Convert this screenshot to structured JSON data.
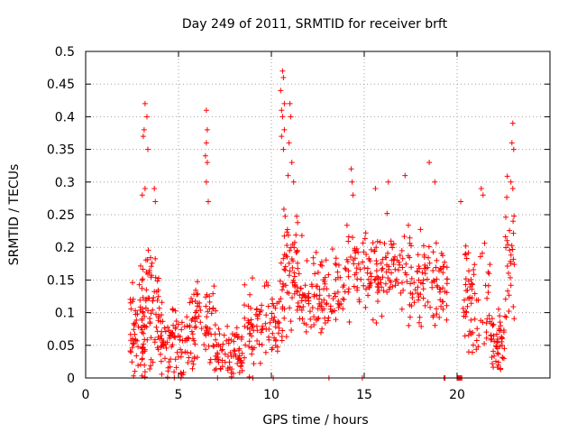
{
  "chart_data": {
    "type": "scatter",
    "title": "Day 249 of 2011, SRMTID for receiver brft",
    "xlabel": "GPS time / hours",
    "ylabel": "SRMTID / TECUs",
    "xlim": [
      0,
      25
    ],
    "ylim": [
      0,
      0.5
    ],
    "grid": true,
    "marker": "+",
    "color": "#ff0000",
    "x_ticks": [
      0,
      5,
      10,
      15,
      20
    ],
    "x_tick_labels": [
      "0",
      "5",
      "10",
      "15",
      "20"
    ],
    "y_ticks": [
      0,
      0.05,
      0.1,
      0.15,
      0.2,
      0.25,
      0.3,
      0.35,
      0.4,
      0.45,
      0.5
    ],
    "y_tick_labels": [
      "0",
      "0.05",
      "0.1",
      "0.15",
      "0.2",
      "0.25",
      "0.3",
      "0.35",
      "0.4",
      "0.45",
      "0.5"
    ],
    "series": [
      {
        "name": "SRMTID",
        "profile": [
          {
            "x_range": [
              2.4,
              3.2
            ],
            "mean": 0.07,
            "spread": 0.06,
            "density": 60
          },
          {
            "x_range": [
              3.0,
              4.0
            ],
            "mean": 0.11,
            "spread": 0.08,
            "density": 70
          },
          {
            "x_range": [
              4.0,
              5.5
            ],
            "mean": 0.05,
            "spread": 0.05,
            "density": 80
          },
          {
            "x_range": [
              5.5,
              7.0
            ],
            "mean": 0.08,
            "spread": 0.06,
            "density": 80
          },
          {
            "x_range": [
              7.0,
              8.5
            ],
            "mean": 0.04,
            "spread": 0.03,
            "density": 70
          },
          {
            "x_range": [
              8.5,
              10.5
            ],
            "mean": 0.08,
            "spread": 0.05,
            "density": 90
          },
          {
            "x_range": [
              10.5,
              11.5
            ],
            "mean": 0.17,
            "spread": 0.08,
            "density": 70
          },
          {
            "x_range": [
              11.5,
              14.0
            ],
            "mean": 0.13,
            "spread": 0.05,
            "density": 110
          },
          {
            "x_range": [
              14.0,
              17.0
            ],
            "mean": 0.16,
            "spread": 0.05,
            "density": 130
          },
          {
            "x_range": [
              17.0,
              19.5
            ],
            "mean": 0.15,
            "spread": 0.06,
            "density": 110
          },
          {
            "x_range": [
              20.3,
              21.8
            ],
            "mean": 0.12,
            "spread": 0.07,
            "density": 70
          },
          {
            "x_range": [
              21.8,
              22.6
            ],
            "mean": 0.05,
            "spread": 0.05,
            "density": 50
          },
          {
            "x_range": [
              22.6,
              23.1
            ],
            "mean": 0.18,
            "spread": 0.1,
            "density": 30
          }
        ],
        "spikes": [
          {
            "x": 3.2,
            "y": 0.42
          },
          {
            "x": 3.3,
            "y": 0.4
          },
          {
            "x": 3.15,
            "y": 0.38
          },
          {
            "x": 3.1,
            "y": 0.37
          },
          {
            "x": 3.35,
            "y": 0.35
          },
          {
            "x": 3.2,
            "y": 0.29
          },
          {
            "x": 3.05,
            "y": 0.28
          },
          {
            "x": 3.7,
            "y": 0.29
          },
          {
            "x": 3.75,
            "y": 0.27
          },
          {
            "x": 6.5,
            "y": 0.41
          },
          {
            "x": 6.55,
            "y": 0.38
          },
          {
            "x": 6.5,
            "y": 0.36
          },
          {
            "x": 6.45,
            "y": 0.34
          },
          {
            "x": 6.55,
            "y": 0.33
          },
          {
            "x": 6.5,
            "y": 0.3
          },
          {
            "x": 6.6,
            "y": 0.27
          },
          {
            "x": 10.6,
            "y": 0.47
          },
          {
            "x": 10.65,
            "y": 0.46
          },
          {
            "x": 10.5,
            "y": 0.44
          },
          {
            "x": 10.7,
            "y": 0.42
          },
          {
            "x": 10.55,
            "y": 0.41
          },
          {
            "x": 10.6,
            "y": 0.4
          },
          {
            "x": 10.7,
            "y": 0.38
          },
          {
            "x": 10.55,
            "y": 0.37
          },
          {
            "x": 10.65,
            "y": 0.35
          },
          {
            "x": 11.0,
            "y": 0.42
          },
          {
            "x": 11.05,
            "y": 0.4
          },
          {
            "x": 10.95,
            "y": 0.36
          },
          {
            "x": 11.1,
            "y": 0.33
          },
          {
            "x": 10.9,
            "y": 0.31
          },
          {
            "x": 11.2,
            "y": 0.3
          },
          {
            "x": 14.3,
            "y": 0.32
          },
          {
            "x": 14.35,
            "y": 0.3
          },
          {
            "x": 14.4,
            "y": 0.28
          },
          {
            "x": 18.5,
            "y": 0.33
          },
          {
            "x": 18.8,
            "y": 0.3
          },
          {
            "x": 17.2,
            "y": 0.31
          },
          {
            "x": 16.3,
            "y": 0.3
          },
          {
            "x": 15.6,
            "y": 0.29
          },
          {
            "x": 23.0,
            "y": 0.39
          },
          {
            "x": 22.95,
            "y": 0.36
          },
          {
            "x": 23.05,
            "y": 0.35
          },
          {
            "x": 22.9,
            "y": 0.3
          },
          {
            "x": 23.0,
            "y": 0.29
          },
          {
            "x": 21.3,
            "y": 0.29
          },
          {
            "x": 21.4,
            "y": 0.28
          },
          {
            "x": 20.2,
            "y": 0.27
          }
        ],
        "zeros": [
          7.1,
          9.0,
          10.1,
          13.1,
          14.9,
          19.3,
          19.35,
          20.0,
          20.05,
          20.1,
          20.15,
          20.2,
          20.25
        ]
      }
    ]
  }
}
